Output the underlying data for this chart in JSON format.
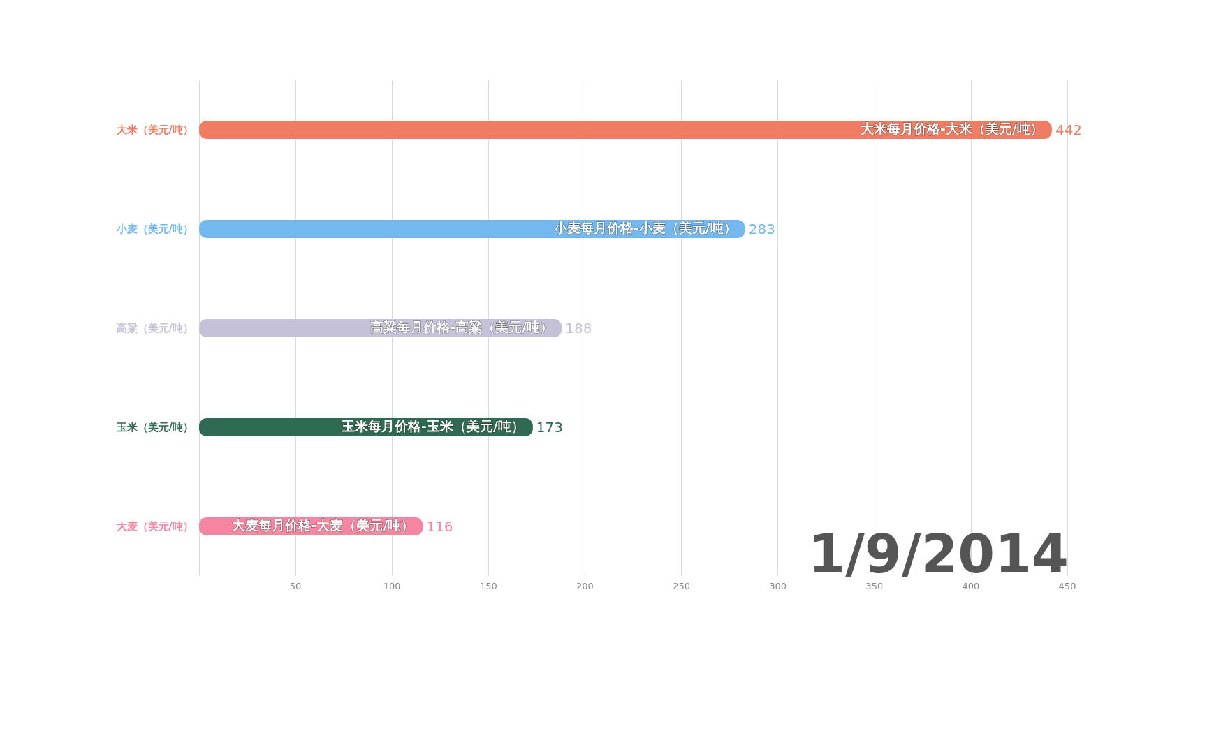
{
  "chart_data": {
    "type": "bar",
    "orientation": "horizontal",
    "categories": [
      "大米（美元/吨）",
      "小麦（美元/吨）",
      "高粱（美元/吨）",
      "玉米（美元/吨）",
      "大麦（美元/吨）"
    ],
    "values": [
      442,
      283,
      188,
      173,
      116
    ],
    "colors": [
      "#f07c64",
      "#73b9f0",
      "#c4c1d9",
      "#2f6b52",
      "#f585a0"
    ],
    "xlim": [
      0,
      450
    ],
    "xticks": [
      {
        "value": 0,
        "label": null
      },
      50,
      100,
      150,
      200,
      250,
      300,
      350,
      400,
      450
    ],
    "grid": "x",
    "data_labels": true,
    "annotations": [
      {
        "text": "大米每月价格-大米（美元/吨）",
        "x": 442,
        "y": "大米（美元/吨）"
      },
      {
        "text": "小麦每月价格-小麦（美元/吨）",
        "x": 283,
        "y": "小麦（美元/吨）"
      },
      {
        "text": "高粱每月价格-高粱（美元/吨）",
        "x": 188,
        "y": "高粱（美元/吨）"
      },
      {
        "text": "玉米每月价格-玉米（美元/吨）",
        "x": 173,
        "y": "玉米（美元/吨）"
      },
      {
        "text": "大麦每月价格-大麦（美元/吨）",
        "x": 116,
        "y": "大麦（美元/吨）"
      },
      "1/9/2014"
    ]
  }
}
